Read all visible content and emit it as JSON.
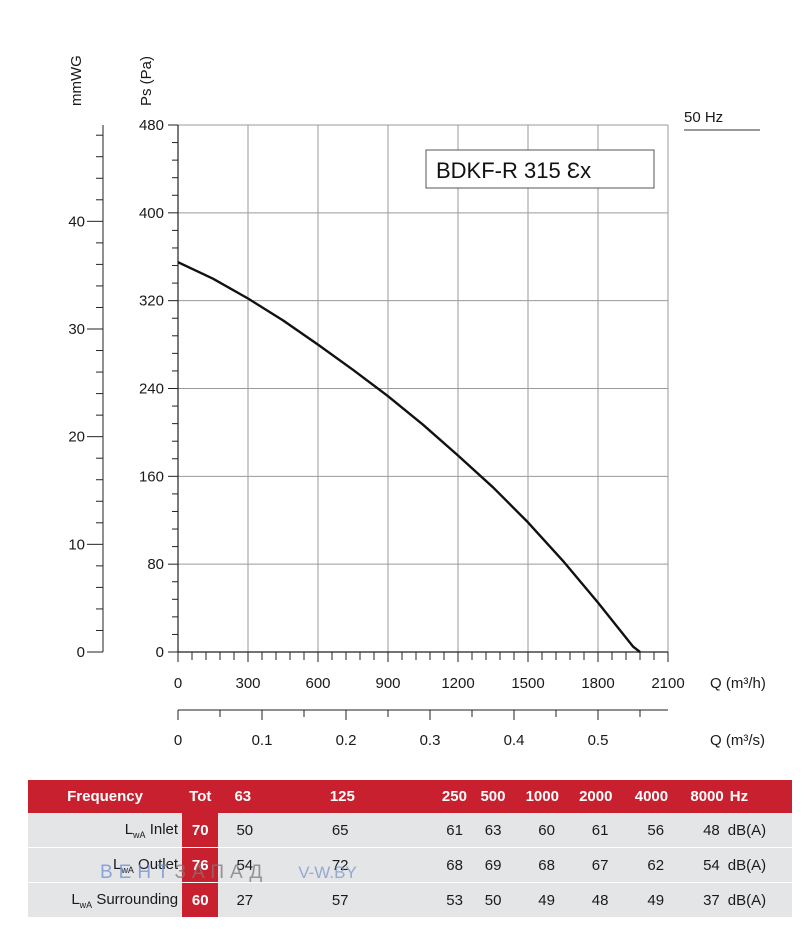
{
  "chart_data": {
    "type": "line",
    "title": "BDKF-R 315 Ɛx",
    "frequency_label": "50 Hz",
    "xlabel": "Q (m³/h)",
    "x2label": "Q (m³/s)",
    "ylabel": "Ps (Pa)",
    "y2label": "mmWG",
    "xlim": [
      0,
      2100
    ],
    "ylim": [
      0,
      480
    ],
    "x_ticks": [
      0,
      300,
      600,
      900,
      1200,
      1500,
      1800,
      2100
    ],
    "y_ticks": [
      0,
      80,
      160,
      240,
      320,
      400,
      480
    ],
    "x2_ticks": [
      "0",
      "0.1",
      "0.2",
      "0.3",
      "0.4",
      "0.5"
    ],
    "x2_tick_values": [
      0,
      0.1,
      0.2,
      0.3,
      0.4,
      0.5
    ],
    "y2_ticks": [
      "0",
      "10",
      "20",
      "30",
      "40"
    ],
    "y2_tick_values": [
      0,
      10,
      20,
      30,
      40
    ],
    "grid": true,
    "series": [
      {
        "x": [
          0,
          150,
          300,
          450,
          600,
          750,
          900,
          1050,
          1200,
          1350,
          1500,
          1650,
          1800,
          1950,
          1980
        ],
        "y": [
          355,
          340,
          322,
          302,
          280,
          257,
          233,
          207,
          179,
          150,
          118,
          83,
          45,
          5,
          0
        ]
      }
    ]
  },
  "table": {
    "header": [
      "Frequency",
      "Tot",
      "63",
      "125",
      "250",
      "500",
      "1000",
      "2000",
      "4000",
      "8000",
      "Hz"
    ],
    "rows": [
      {
        "label_main": "L",
        "label_sub": "wA",
        "label_rest": " Inlet",
        "tot": "70",
        "values": [
          "50",
          "65",
          "61",
          "63",
          "60",
          "61",
          "56",
          "48"
        ],
        "unit": "dB(A)"
      },
      {
        "label_main": "L",
        "label_sub": "wA",
        "label_rest": " Outlet",
        "tot": "76",
        "values": [
          "54",
          "72",
          "68",
          "69",
          "68",
          "67",
          "62",
          "54"
        ],
        "unit": "dB(A)"
      },
      {
        "label_main": "L",
        "label_sub": "wA",
        "label_rest": " Surrounding",
        "tot": "60",
        "values": [
          "27",
          "57",
          "53",
          "50",
          "49",
          "48",
          "49",
          "37"
        ],
        "unit": "dB(A)"
      }
    ]
  },
  "watermark": {
    "brand_a": "ВЕНТ",
    "brand_b": "ЗАПАД",
    "url": "V-W.BY"
  },
  "colors": {
    "accent": "#c8202f",
    "row_bg": "#e4e5e7",
    "grid": "#9a9a9a"
  }
}
